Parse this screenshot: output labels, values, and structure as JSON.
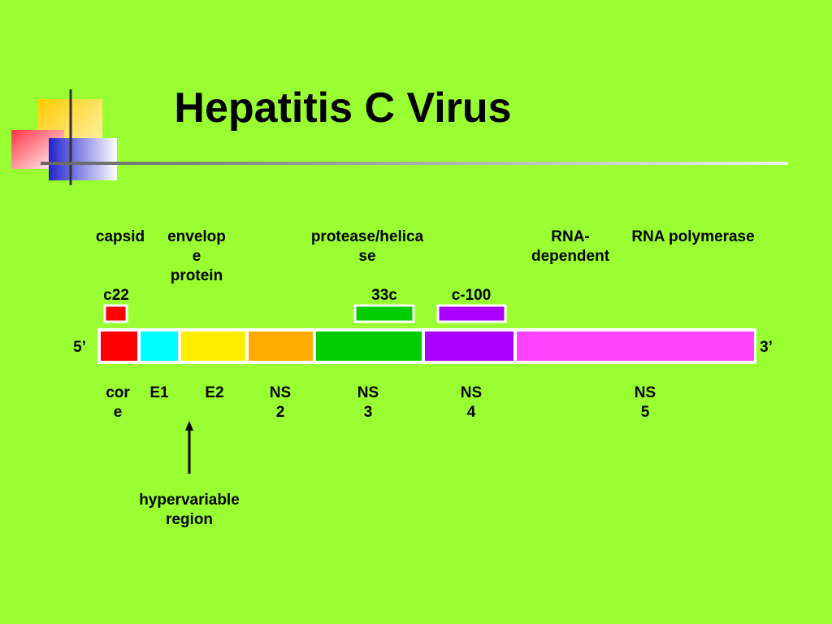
{
  "title": "Hepatitis C Virus",
  "functions": [
    {
      "lines": [
        "capsid"
      ]
    },
    {
      "lines": [
        "envelop",
        "e",
        "protein"
      ]
    },
    {
      "lines": [
        "protease/helica",
        "se"
      ]
    },
    {
      "lines": [
        "RNA-",
        "dependent"
      ]
    },
    {
      "lines": [
        "RNA polymerase"
      ]
    }
  ],
  "antigens": [
    {
      "label": "c22",
      "color": "#ff0000"
    },
    {
      "label": "33c",
      "color": "#00cc00"
    },
    {
      "label": "c-100",
      "color": "#aa00ff"
    }
  ],
  "ends": [
    "5’",
    "3’"
  ],
  "regions": [
    {
      "lines": [
        "cor",
        "e"
      ],
      "color": "#ff0000"
    },
    {
      "lines": [
        "E1"
      ],
      "color": "#00ffff"
    },
    {
      "lines": [
        "E2"
      ],
      "color": "#ffee00"
    },
    {
      "lines": [
        "NS",
        "2"
      ],
      "color": "#ffaa00"
    },
    {
      "lines": [
        "NS",
        "3"
      ],
      "color": "#00cc00"
    },
    {
      "lines": [
        "NS",
        "4"
      ],
      "color": "#aa00ff"
    },
    {
      "lines": [
        "NS",
        "5"
      ],
      "color": "#ff44ff"
    }
  ],
  "annotation": {
    "lines": [
      "hypervariable",
      "region"
    ]
  }
}
